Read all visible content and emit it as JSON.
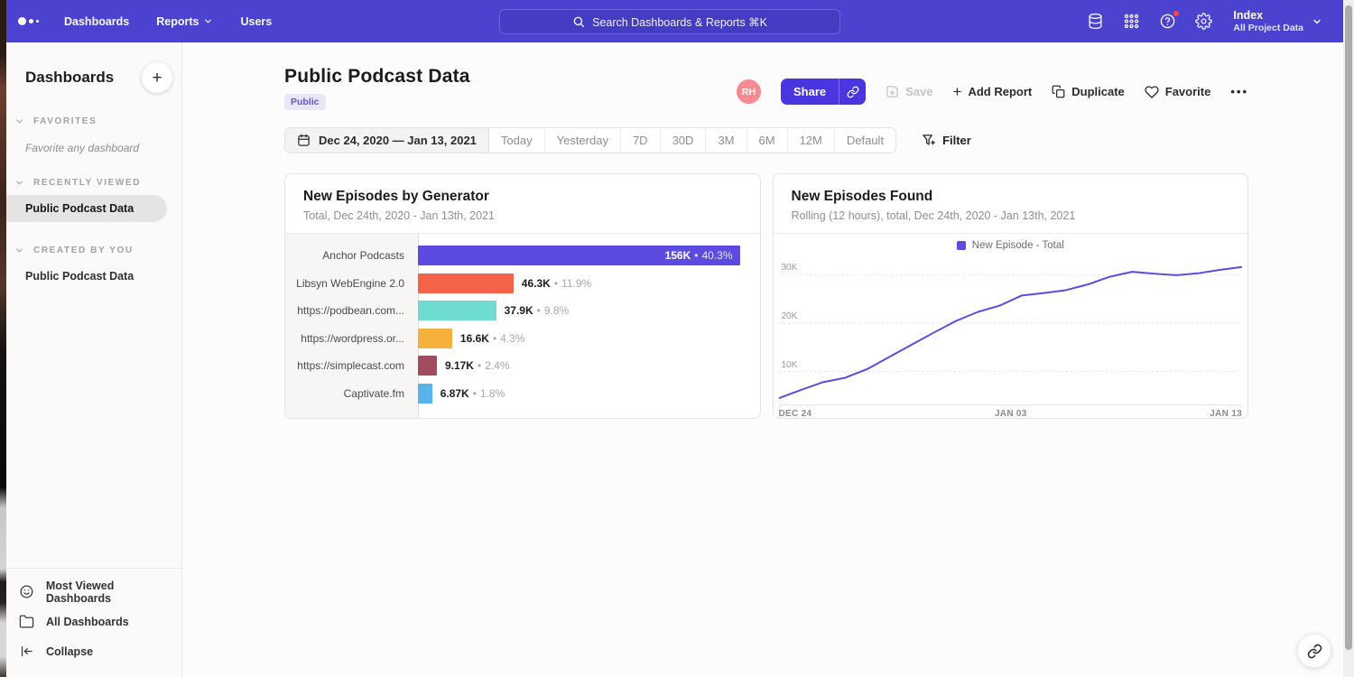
{
  "nav": {
    "items": [
      {
        "label": "Dashboards",
        "has_dropdown": false
      },
      {
        "label": "Reports",
        "has_dropdown": true
      },
      {
        "label": "Users",
        "has_dropdown": false
      }
    ],
    "search_placeholder": "Search Dashboards & Reports ⌘K",
    "right_icons": [
      {
        "name": "data-management-icon",
        "badge": false
      },
      {
        "name": "apps-grid-icon",
        "badge": false
      },
      {
        "name": "help-icon",
        "badge": true
      },
      {
        "name": "settings-gear-icon",
        "badge": false
      }
    ],
    "project": {
      "name": "Index",
      "subtitle": "All Project Data"
    }
  },
  "sidebar": {
    "title": "Dashboards",
    "sections": [
      {
        "label": "FAVORITES",
        "empty_text": "Favorite any dashboard",
        "items": []
      },
      {
        "label": "RECENTLY VIEWED",
        "items": [
          {
            "label": "Public Podcast Data",
            "selected": true
          }
        ]
      },
      {
        "label": "CREATED BY YOU",
        "items": [
          {
            "label": "Public Podcast Data",
            "selected": false
          }
        ]
      }
    ],
    "footer_items": [
      {
        "label": "Most Viewed Dashboards",
        "icon": "smile-icon"
      },
      {
        "label": "All Dashboards",
        "icon": "folder-icon"
      },
      {
        "label": "Collapse",
        "icon": "collapse-icon"
      }
    ]
  },
  "header": {
    "title": "Public Podcast Data",
    "badge": "Public",
    "avatar_initials": "RH",
    "actions": {
      "share": "Share",
      "save": "Save",
      "add_report": "Add Report",
      "duplicate": "Duplicate",
      "favorite": "Favorite"
    }
  },
  "toolbar": {
    "date_range": "Dec 24, 2020 — Jan 13, 2021",
    "presets": [
      "Today",
      "Yesterday",
      "7D",
      "30D",
      "3M",
      "6M",
      "12M",
      "Default"
    ],
    "filter_label": "Filter"
  },
  "chart_data": [
    {
      "type": "bar",
      "orientation": "horizontal",
      "title": "New Episodes by Generator",
      "subtitle": "Total, Dec 24th, 2020 - Jan 13th, 2021",
      "categories": [
        "Anchor Podcasts",
        "Libsyn WebEngine 2.0",
        "https://podbean.com...",
        "https://wordpress.or...",
        "https://simplecast.com",
        "Captivate.fm"
      ],
      "values": [
        156000,
        46300,
        37900,
        16600,
        9170,
        6870
      ],
      "value_labels": [
        "156K",
        "46.3K",
        "37.9K",
        "16.6K",
        "9.17K",
        "6.87K"
      ],
      "pct_labels": [
        "40.3%",
        "11.9%",
        "9.8%",
        "4.3%",
        "2.4%",
        "1.8%"
      ],
      "colors": [
        "#5b4be0",
        "#f4624a",
        "#6edcd0",
        "#f6b13d",
        "#a34b5e",
        "#57b3ea"
      ],
      "xmax": 156000,
      "label_inside_first": true
    },
    {
      "type": "line",
      "title": "New Episodes Found",
      "subtitle": "Rolling (12 hours), total, Dec 24th, 2020 - Jan 13th, 2021",
      "legend": [
        {
          "label": "New Episode - Total",
          "color": "#5b4be0"
        }
      ],
      "x_ticks": [
        "DEC 24",
        "JAN 03",
        "JAN 13"
      ],
      "y_ticks": [
        "10K",
        "20K",
        "30K"
      ],
      "y_tick_values": [
        10000,
        20000,
        30000
      ],
      "values": [
        4500,
        6200,
        7800,
        8700,
        10500,
        13000,
        15500,
        18000,
        20400,
        22300,
        23600,
        25700,
        26200,
        26800,
        28000,
        29600,
        30600,
        30200,
        29900,
        30300,
        31000,
        31600
      ],
      "ylim": [
        3200,
        33600
      ],
      "grid": "dotted-horizontal",
      "legend_position": "top-center",
      "line_color": "#5b4be0"
    }
  ]
}
